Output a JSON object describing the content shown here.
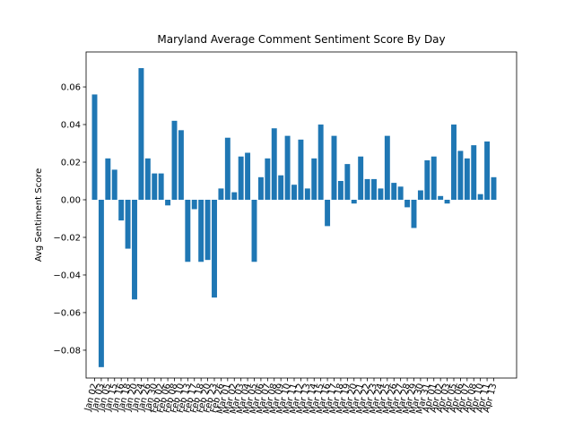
{
  "chart_data": {
    "type": "bar",
    "title": "Maryland Average Comment Sentiment Score By Day",
    "y_label": "Avg Sentiment Score",
    "color": "#1f77b4",
    "categories": [
      "Jan 02",
      "Jan 03",
      "Jan 05",
      "Jan 15",
      "Jan 16",
      "Jan 18",
      "Jan 20",
      "Jan 24",
      "Jan 26",
      "Jan 30",
      "Feb 02",
      "Feb 06",
      "Feb 08",
      "Feb 10",
      "Feb 13",
      "Feb 17",
      "Feb 18",
      "Feb 20",
      "Feb 23",
      "Feb 26",
      "Mar 01",
      "Mar 02",
      "Mar 03",
      "Mar 04",
      "Mar 05",
      "Mar 06",
      "Mar 07",
      "Mar 08",
      "Mar 09",
      "Mar 10",
      "Mar 11",
      "Mar 12",
      "Mar 13",
      "Mar 14",
      "Mar 15",
      "Mar 16",
      "Mar 17",
      "Mar 18",
      "Mar 19",
      "Mar 20",
      "Mar 21",
      "Mar 22",
      "Mar 23",
      "Mar 24",
      "Mar 25",
      "Mar 26",
      "Mar 27",
      "Mar 28",
      "Mar 29",
      "Mar 30",
      "Mar 31",
      "Apr 01",
      "Apr 02",
      "Apr 03",
      "Apr 05",
      "Apr 06",
      "Apr 07",
      "Apr 08",
      "Apr 10",
      "Apr 11",
      "Apr 13"
    ],
    "values": [
      0.056,
      -0.089,
      0.022,
      0.016,
      -0.011,
      -0.026,
      -0.053,
      0.07,
      0.022,
      0.014,
      0.014,
      -0.003,
      0.042,
      0.037,
      -0.033,
      -0.005,
      -0.033,
      -0.032,
      -0.052,
      0.006,
      0.033,
      0.004,
      0.023,
      0.025,
      -0.033,
      0.012,
      0.022,
      0.038,
      0.013,
      0.034,
      0.008,
      0.032,
      0.006,
      0.022,
      0.04,
      -0.014,
      0.034,
      0.01,
      0.019,
      -0.002,
      0.023,
      0.011,
      0.011,
      0.006,
      0.034,
      0.009,
      0.007,
      -0.004,
      -0.015,
      0.005,
      0.021,
      0.023,
      0.002,
      -0.002,
      0.04,
      0.026,
      0.022,
      0.029,
      0.003,
      0.031,
      0.012
    ],
    "ylim": [
      -0.0948,
      0.0786
    ],
    "yticks": [
      {
        "value": -0.08,
        "label": "−0.08"
      },
      {
        "value": -0.06,
        "label": "−0.06"
      },
      {
        "value": -0.04,
        "label": "−0.04"
      },
      {
        "value": -0.02,
        "label": "−0.02"
      },
      {
        "value": 0,
        "label": "0.00"
      },
      {
        "value": 0.02,
        "label": "0.02"
      },
      {
        "value": 0.04,
        "label": "0.04"
      },
      {
        "value": 0.06,
        "label": "0.06"
      }
    ],
    "grid": false
  }
}
